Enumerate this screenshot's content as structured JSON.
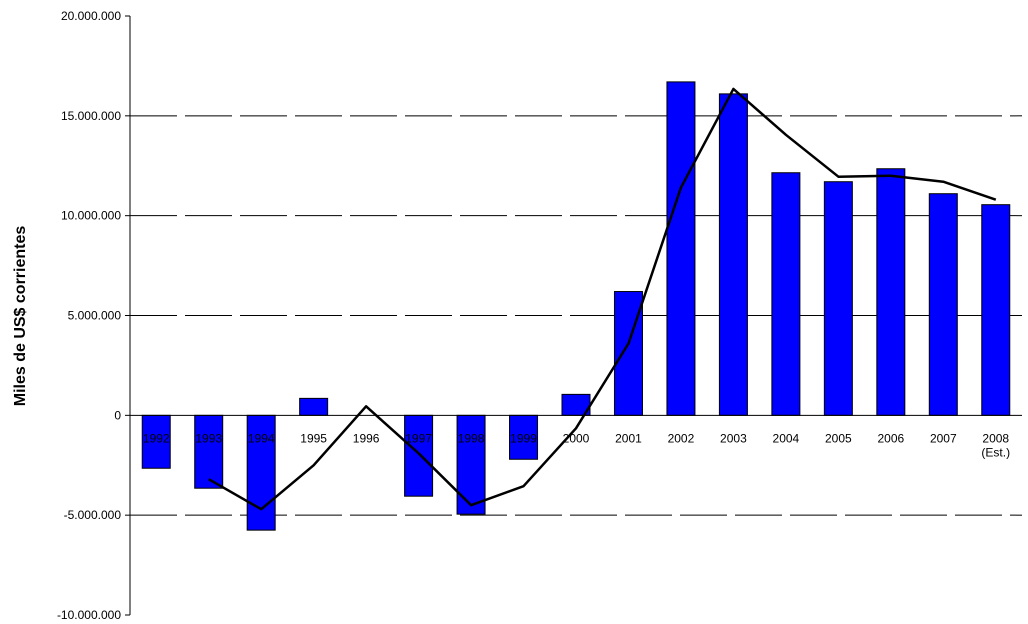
{
  "chart_data": {
    "type": "bar",
    "ylabel": "Miles de US$ corrientes",
    "ylim": [
      -10000000,
      20000000
    ],
    "ytick_step": 5000000,
    "ytick_labels": [
      "-10.000.000",
      "-5.000.000",
      "0",
      "5.000.000",
      "10.000.000",
      "15.000.000",
      "20.000.000"
    ],
    "grid": "dashed horizontal",
    "categories": [
      "1992",
      "1993",
      "1994",
      "1995",
      "1996",
      "1997",
      "1998",
      "1999",
      "2000",
      "2001",
      "2002",
      "2003",
      "2004",
      "2005",
      "2006",
      "2007",
      "2008"
    ],
    "category_sublabels": [
      "",
      "",
      "",
      "",
      "",
      "",
      "",
      "",
      "",
      "",
      "",
      "",
      "",
      "",
      "",
      "",
      "(Est.)"
    ],
    "series": [
      {
        "type": "bar",
        "color": "#0000ff",
        "values": [
          -2650000,
          -3650000,
          -5750000,
          850000,
          0,
          -4050000,
          -4950000,
          -2200000,
          1050000,
          6200000,
          16700000,
          16100000,
          12150000,
          11700000,
          12350000,
          11100000,
          10550000
        ]
      },
      {
        "type": "line",
        "color": "#000000",
        "values": [
          null,
          -3200000,
          -4700000,
          -2500000,
          450000,
          -1900000,
          -4500000,
          -3550000,
          -650000,
          3600000,
          11400000,
          16350000,
          14050000,
          11950000,
          12000000,
          11700000,
          10800000
        ]
      }
    ]
  }
}
